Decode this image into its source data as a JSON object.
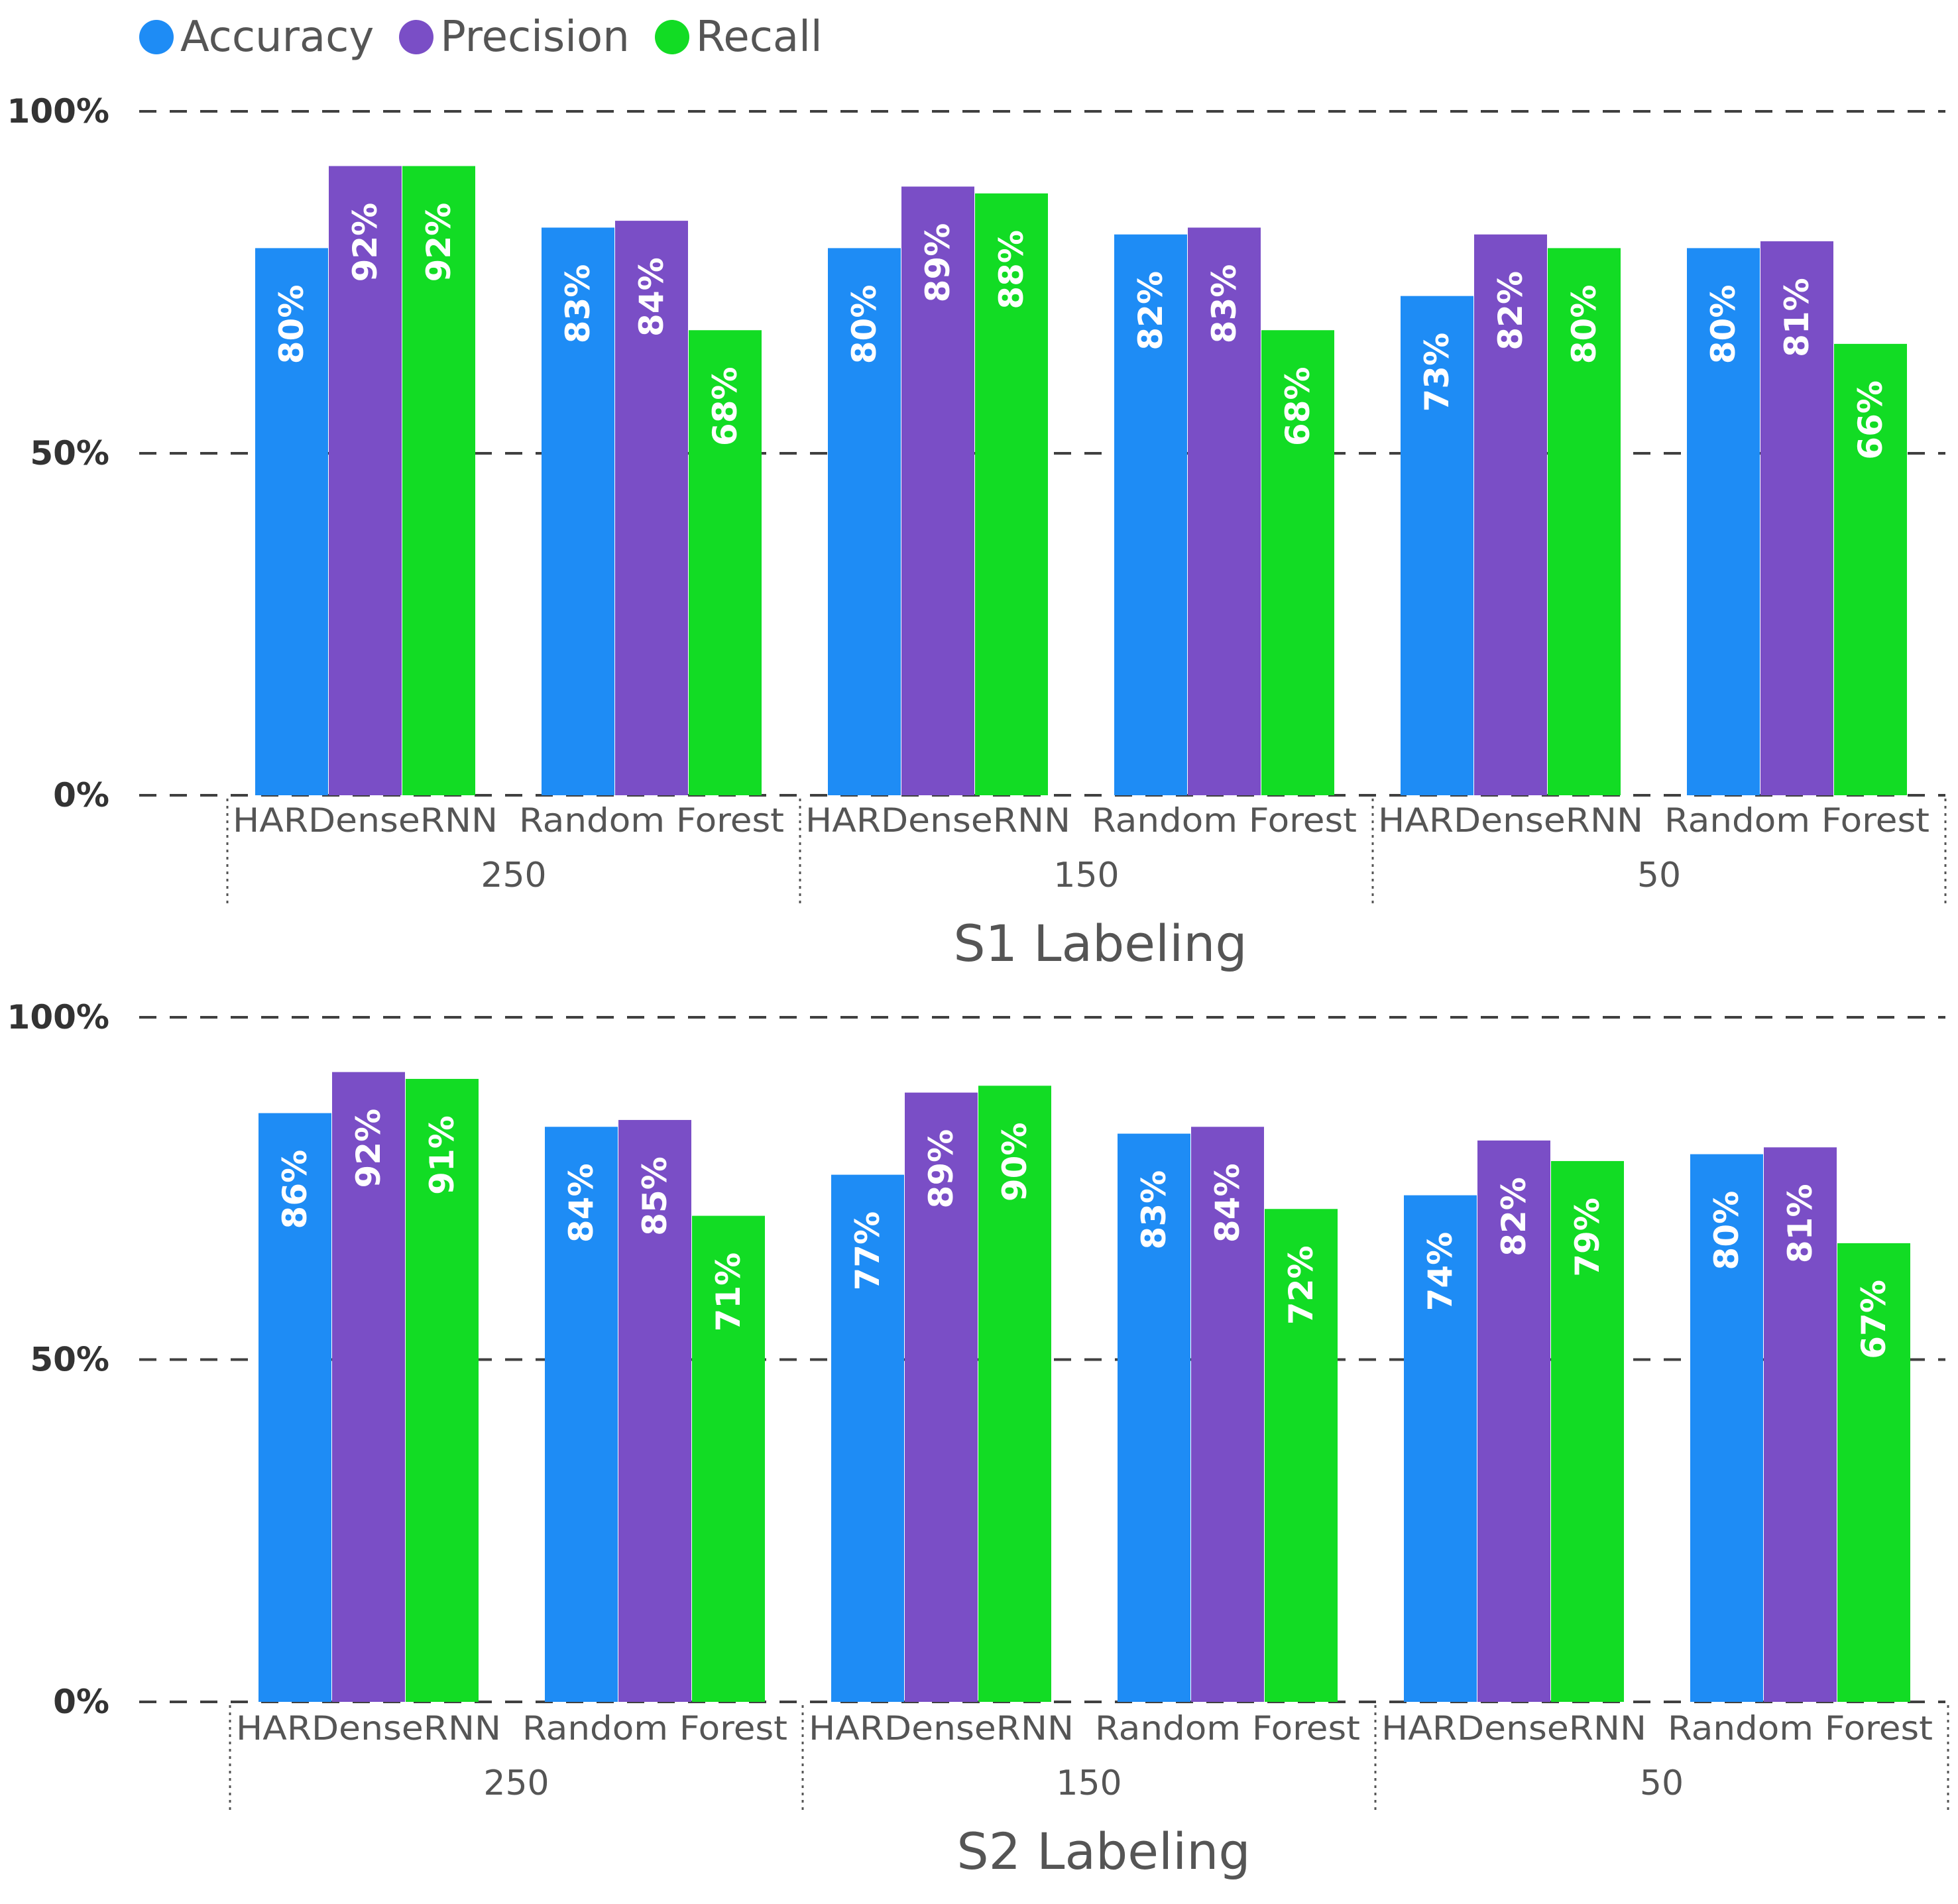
{
  "legend": [
    {
      "label": "Accuracy",
      "color": "#1e8cf5"
    },
    {
      "label": "Precision",
      "color": "#7a4ec6"
    },
    {
      "label": "Recall",
      "color": "#12dc24"
    }
  ],
  "chart_data": [
    {
      "type": "bar",
      "title": "S1 Labeling",
      "ylim": [
        0,
        100
      ],
      "yticks": [
        "0%",
        "50%",
        "100%"
      ],
      "groups": [
        "250",
        "150",
        "50"
      ],
      "categories": [
        "HARDenseRNN",
        "Random Forest",
        "HARDenseRNN",
        "Random Forest",
        "HARDenseRNN",
        "Random Forest"
      ],
      "series": [
        {
          "name": "Accuracy",
          "values": [
            80,
            83,
            80,
            82,
            73,
            80
          ],
          "labels": [
            "80%",
            "83%",
            "80%",
            "82%",
            "73%",
            "80%"
          ]
        },
        {
          "name": "Precision",
          "values": [
            92,
            84,
            89,
            83,
            82,
            81
          ],
          "labels": [
            "92%",
            "84%",
            "89%",
            "83%",
            "82%",
            "81%"
          ]
        },
        {
          "name": "Recall",
          "values": [
            92,
            68,
            88,
            68,
            80,
            66
          ],
          "labels": [
            "92%",
            "68%",
            "88%",
            "68%",
            "80%",
            "66%"
          ]
        }
      ]
    },
    {
      "type": "bar",
      "title": "S2 Labeling",
      "ylim": [
        0,
        100
      ],
      "yticks": [
        "0%",
        "50%",
        "100%"
      ],
      "groups": [
        "250",
        "150",
        "50"
      ],
      "categories": [
        "HARDenseRNN",
        "Random Forest",
        "HARDenseRNN",
        "Random Forest",
        "HARDenseRNN",
        "Random Forest"
      ],
      "series": [
        {
          "name": "Accuracy",
          "values": [
            86,
            84,
            77,
            83,
            74,
            80
          ],
          "labels": [
            "86%",
            "84%",
            "77%",
            "83%",
            "74%",
            "80%"
          ]
        },
        {
          "name": "Precision",
          "values": [
            92,
            85,
            89,
            84,
            82,
            81
          ],
          "labels": [
            "92%",
            "85%",
            "89%",
            "84%",
            "82%",
            "81%"
          ]
        },
        {
          "name": "Recall",
          "values": [
            91,
            71,
            90,
            72,
            79,
            67
          ],
          "labels": [
            "91%",
            "71%",
            "90%",
            "72%",
            "79%",
            "67%"
          ]
        }
      ]
    }
  ]
}
